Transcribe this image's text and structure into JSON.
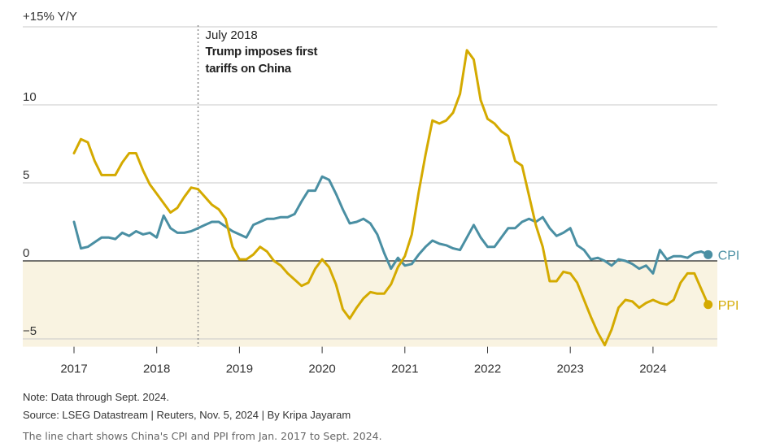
{
  "chart_data": {
    "type": "line",
    "ylabel": "+15% Y/Y",
    "ylim": [
      -5.5,
      15
    ],
    "yticks": [
      {
        "value": 10,
        "label": "10"
      },
      {
        "value": 5,
        "label": "5"
      },
      {
        "value": 0,
        "label": "0"
      },
      {
        "value": -5,
        "label": "−5"
      }
    ],
    "xticks": [
      {
        "value": 2017,
        "label": "2017"
      },
      {
        "value": 2018,
        "label": "2018"
      },
      {
        "value": 2019,
        "label": "2019"
      },
      {
        "value": 2020,
        "label": "2020"
      },
      {
        "value": 2021,
        "label": "2021"
      },
      {
        "value": 2022,
        "label": "2022"
      },
      {
        "value": 2023,
        "label": "2023"
      },
      {
        "value": 2024,
        "label": "2024"
      }
    ],
    "x_start": "2017-01",
    "x_end": "2024-09",
    "negative_region_color": "#f9f3e1",
    "annotation": {
      "date": "2018-07",
      "line1": "July 2018",
      "line2": "Trump imposes first",
      "line3": "tariffs on China"
    },
    "series": [
      {
        "name": "CPI",
        "color": "#4a8fa3",
        "values": [
          2.5,
          0.8,
          0.9,
          1.2,
          1.5,
          1.5,
          1.4,
          1.8,
          1.6,
          1.9,
          1.7,
          1.8,
          1.5,
          2.9,
          2.1,
          1.8,
          1.8,
          1.9,
          2.1,
          2.3,
          2.5,
          2.5,
          2.2,
          1.9,
          1.7,
          1.5,
          2.3,
          2.5,
          2.7,
          2.7,
          2.8,
          2.8,
          3.0,
          3.8,
          4.5,
          4.5,
          5.4,
          5.2,
          4.3,
          3.3,
          2.4,
          2.5,
          2.7,
          2.4,
          1.7,
          0.5,
          -0.5,
          0.2,
          -0.3,
          -0.2,
          0.4,
          0.9,
          1.3,
          1.1,
          1.0,
          0.8,
          0.7,
          1.5,
          2.3,
          1.5,
          0.9,
          0.9,
          1.5,
          2.1,
          2.1,
          2.5,
          2.7,
          2.5,
          2.8,
          2.1,
          1.6,
          1.8,
          2.1,
          1.0,
          0.7,
          0.1,
          0.2,
          0.0,
          -0.3,
          0.1,
          0.0,
          -0.2,
          -0.5,
          -0.3,
          -0.8,
          0.7,
          0.1,
          0.3,
          0.3,
          0.2,
          0.5,
          0.6,
          0.4
        ]
      },
      {
        "name": "PPI",
        "color": "#d4aa00",
        "values": [
          6.9,
          7.8,
          7.6,
          6.4,
          5.5,
          5.5,
          5.5,
          6.3,
          6.9,
          6.9,
          5.8,
          4.9,
          4.3,
          3.7,
          3.1,
          3.4,
          4.1,
          4.7,
          4.6,
          4.1,
          3.6,
          3.3,
          2.7,
          0.9,
          0.1,
          0.1,
          0.4,
          0.9,
          0.6,
          0.0,
          -0.3,
          -0.8,
          -1.2,
          -1.6,
          -1.4,
          -0.5,
          0.1,
          -0.4,
          -1.5,
          -3.1,
          -3.7,
          -3.0,
          -2.4,
          -2.0,
          -2.1,
          -2.1,
          -1.5,
          -0.4,
          0.3,
          1.7,
          4.4,
          6.8,
          9.0,
          8.8,
          9.0,
          9.5,
          10.7,
          13.5,
          12.9,
          10.3,
          9.1,
          8.8,
          8.3,
          8.0,
          6.4,
          6.1,
          4.2,
          2.3,
          0.9,
          -1.3,
          -1.3,
          -0.7,
          -0.8,
          -1.4,
          -2.5,
          -3.6,
          -4.6,
          -5.4,
          -4.4,
          -3.0,
          -2.5,
          -2.6,
          -3.0,
          -2.7,
          -2.5,
          -2.7,
          -2.8,
          -2.5,
          -1.4,
          -0.8,
          -0.8,
          -1.8,
          -2.8
        ]
      }
    ]
  },
  "footer": {
    "note": "Note: Data through Sept. 2024.",
    "source": "Source: LSEG Datastream | Reuters, Nov. 5, 2024 | By Kripa Jayaram",
    "alt_text": "The line chart shows China's CPI and PPI from Jan. 2017 to Sept. 2024."
  }
}
